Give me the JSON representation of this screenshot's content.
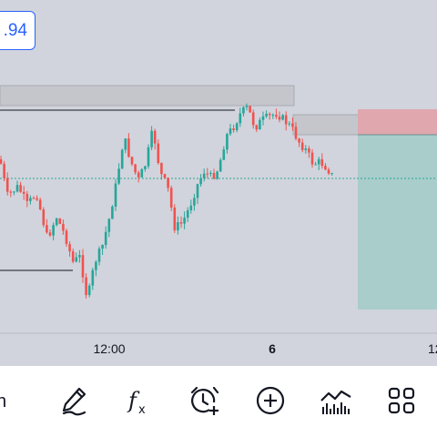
{
  "price_badge": {
    "value": ".94"
  },
  "time_axis": {
    "labels": [
      "12:00",
      "6",
      "12:"
    ]
  },
  "toolbar": {
    "left_partial_label": "n",
    "items": [
      {
        "icon": "pencil-icon"
      },
      {
        "icon": "function-icon"
      },
      {
        "icon": "alarm-add-icon"
      },
      {
        "icon": "add-circle-icon"
      },
      {
        "icon": "indicators-icon"
      },
      {
        "icon": "grid-icon"
      }
    ]
  },
  "colors": {
    "chart_bg": "#d1d4dc",
    "up": "#26a69a",
    "down": "#ef5350",
    "accent": "#2962ff",
    "stop_zone": "#e3a9b1",
    "target_zone": "#a9cfcd"
  }
}
